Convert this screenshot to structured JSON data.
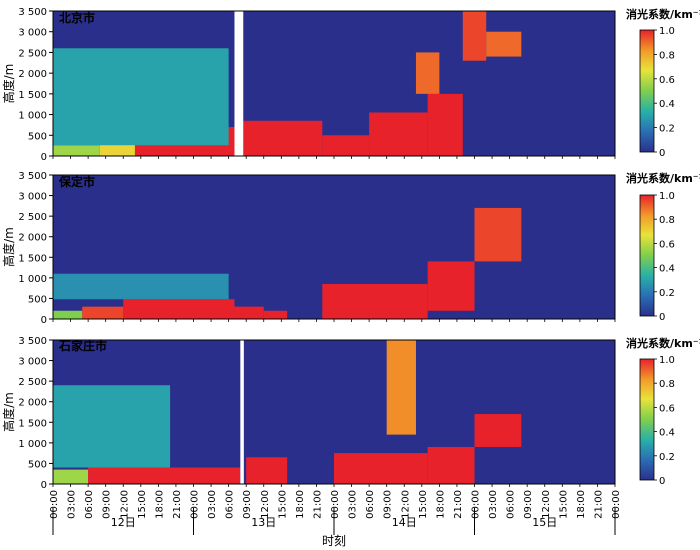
{
  "chart_data": {
    "type": "heatmap",
    "xlabel": "时刻",
    "ylabel": "高度/m",
    "ylim": [
      0,
      3500
    ],
    "yticks": [
      "0",
      "500",
      "1 000",
      "1 500",
      "2 000",
      "2 500",
      "3 000",
      "3 500"
    ],
    "xtick_labels": [
      "00:00",
      "03:00",
      "06:00",
      "09:00",
      "12:00",
      "15:00",
      "18:00",
      "21:00",
      "00:00",
      "03:00",
      "06:00",
      "09:00",
      "12:00",
      "15:00",
      "18:00",
      "21:00",
      "00:00",
      "03:00",
      "06:00",
      "09:00",
      "12:00",
      "15:00",
      "18:00",
      "21:00",
      "00:00",
      "03:00",
      "06:00",
      "09:00",
      "12:00",
      "15:00",
      "18:00",
      "21:00",
      "00:00"
    ],
    "day_labels": [
      "12日",
      "13日",
      "14日",
      "15日"
    ],
    "colorbar": {
      "label": "消光系数/km⁻¹",
      "range": [
        0,
        1.0
      ],
      "ticks": [
        "0",
        "0.2",
        "0.4",
        "0.6",
        "0.8",
        "1.0"
      ],
      "colors": [
        "#2b2f8c",
        "#2a6fb5",
        "#27b0a8",
        "#7fcf4e",
        "#e8e33a",
        "#f39a2a",
        "#e8222b"
      ]
    },
    "panels": [
      {
        "name": "北京市",
        "missing_hours": [
          [
            31,
            32.5
          ]
        ],
        "layers": [
          {
            "range": [
              0,
              8
            ],
            "base": 0,
            "top": 260,
            "value": 0.55
          },
          {
            "range": [
              8,
              14
            ],
            "base": 0,
            "top": 320,
            "value": 0.7
          },
          {
            "range": [
              14,
              31
            ],
            "base": 0,
            "top": 700,
            "value": 1.0
          },
          {
            "range": [
              32.5,
              46
            ],
            "base": 0,
            "top": 850,
            "value": 1.0
          },
          {
            "range": [
              46,
              54
            ],
            "base": 0,
            "top": 500,
            "value": 1.0
          },
          {
            "range": [
              54,
              64
            ],
            "base": 0,
            "top": 1050,
            "value": 1.0
          },
          {
            "range": [
              64,
              70
            ],
            "base": 0,
            "top": 1500,
            "value": 1.0
          },
          {
            "range": [
              70,
              74
            ],
            "base": 2300,
            "top": 3500,
            "value": 0.95
          },
          {
            "range": [
              74,
              80
            ],
            "base": 2400,
            "top": 3000,
            "value": 0.9
          },
          {
            "range": [
              0,
              30
            ],
            "base": 260,
            "top": 2600,
            "value": 0.3
          },
          {
            "range": [
              62,
              66
            ],
            "base": 1500,
            "top": 2500,
            "value": 0.9
          }
        ]
      },
      {
        "name": "保定市",
        "missing_hours": [],
        "layers": [
          {
            "range": [
              0,
              5
            ],
            "base": 0,
            "top": 200,
            "value": 0.5
          },
          {
            "range": [
              5,
              12
            ],
            "base": 0,
            "top": 300,
            "value": 0.95
          },
          {
            "range": [
              12,
              31
            ],
            "base": 0,
            "top": 480,
            "value": 1.0
          },
          {
            "range": [
              31,
              36
            ],
            "base": 0,
            "top": 300,
            "value": 1.0
          },
          {
            "range": [
              36,
              40
            ],
            "base": 0,
            "top": 200,
            "value": 1.0
          },
          {
            "range": [
              46,
              64
            ],
            "base": 0,
            "top": 850,
            "value": 1.0
          },
          {
            "range": [
              64,
              72
            ],
            "base": 200,
            "top": 1400,
            "value": 1.0
          },
          {
            "range": [
              72,
              80
            ],
            "base": 1400,
            "top": 2700,
            "value": 0.95
          },
          {
            "range": [
              0,
              30
            ],
            "base": 480,
            "top": 1100,
            "value": 0.25
          }
        ]
      },
      {
        "name": "石家庄市",
        "missing_hours": [
          [
            32,
            32.6
          ]
        ],
        "layers": [
          {
            "range": [
              0,
              6
            ],
            "base": 0,
            "top": 350,
            "value": 0.55
          },
          {
            "range": [
              6,
              32
            ],
            "base": 0,
            "top": 400,
            "value": 1.0
          },
          {
            "range": [
              33,
              40
            ],
            "base": 0,
            "top": 650,
            "value": 1.0
          },
          {
            "range": [
              48,
              64
            ],
            "base": 0,
            "top": 750,
            "value": 1.0
          },
          {
            "range": [
              64,
              72
            ],
            "base": 0,
            "top": 900,
            "value": 1.0
          },
          {
            "range": [
              72,
              80
            ],
            "base": 900,
            "top": 1700,
            "value": 1.0
          },
          {
            "range": [
              57,
              62
            ],
            "base": 1200,
            "top": 3500,
            "value": 0.85
          },
          {
            "range": [
              0,
              20
            ],
            "base": 400,
            "top": 2400,
            "value": 0.3
          }
        ]
      }
    ]
  }
}
